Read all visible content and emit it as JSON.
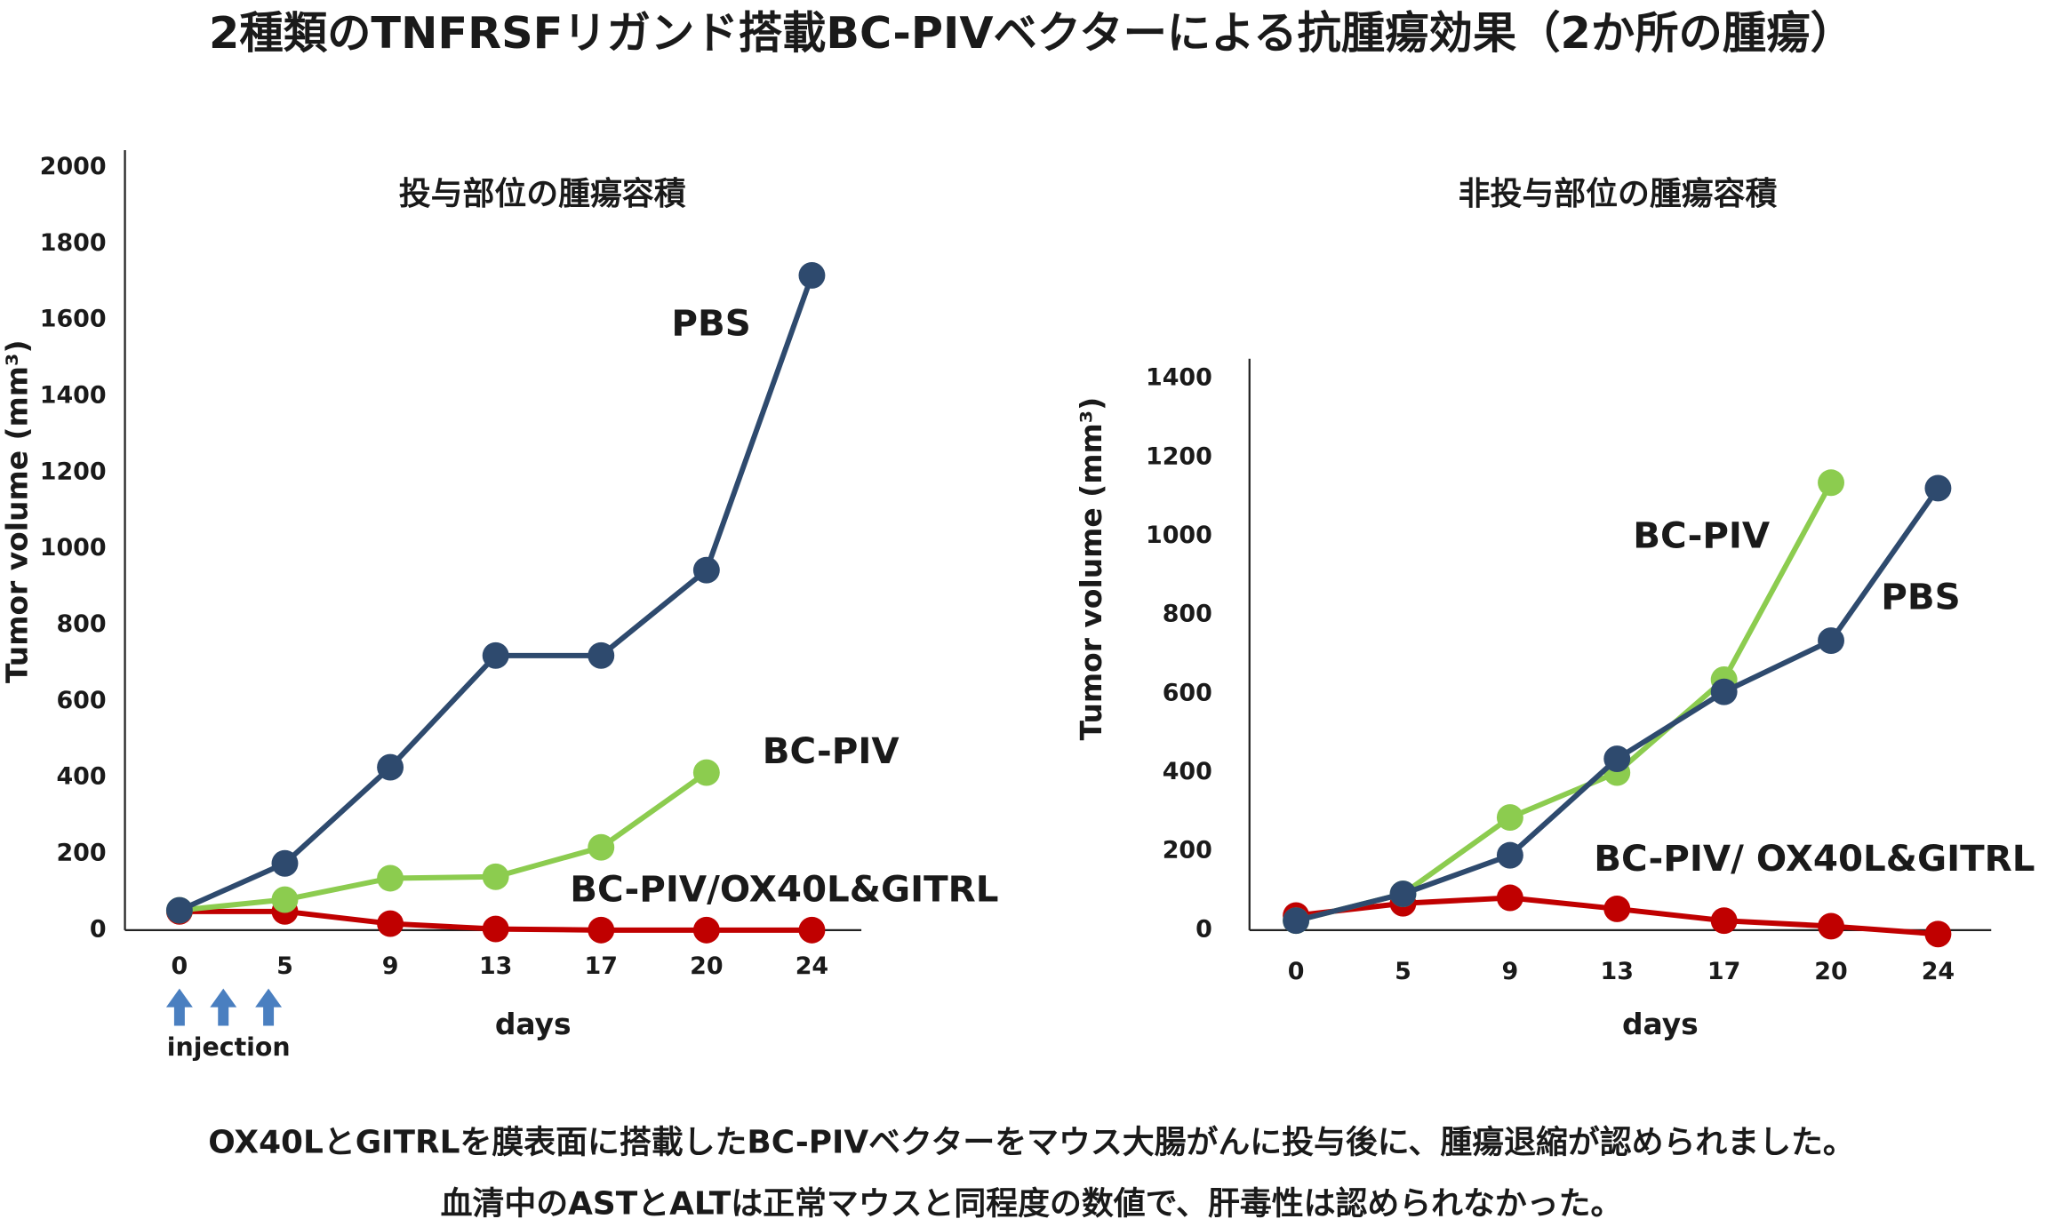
{
  "title": "2種類のTNFRSFリガンド搭載BC-PIVベクターによる抗腫瘍効果（2か所の腫瘍）",
  "caption": [
    "OX40LとGITRLを膜表面に搭載したBC-PIVベクターをマウス大腸がんに投与後に、腫瘍退縮が認められました。",
    "血清中のASTとALTは正常マウスと同程度の数値で、肝毒性は認められなかった。"
  ],
  "chart_data": [
    {
      "type": "line",
      "title": "投与部位の腫瘍容積",
      "x_label": "days",
      "y_label": "Tumor volume (mm³)",
      "annotation": "injection",
      "categories": [
        "0",
        "5",
        "9",
        "13",
        "17",
        "20",
        "24"
      ],
      "ylim": [
        0,
        2000
      ],
      "yticks": [
        0,
        200,
        400,
        600,
        800,
        1000,
        1200,
        1400,
        1600,
        1800,
        2000
      ],
      "series": [
        {
          "name": "PBS",
          "color": "#2e4a6e",
          "values": [
            52,
            175,
            427,
            720,
            720,
            944,
            1717
          ]
        },
        {
          "name": "BC-PIV",
          "color": "#8ccc4f",
          "values": [
            52,
            80,
            136,
            140,
            217,
            413,
            null
          ]
        },
        {
          "name": "BC-PIV/OX40L&GITRL",
          "color": "#c00000",
          "values": [
            49,
            49,
            17,
            3,
            0,
            0,
            0
          ]
        }
      ]
    },
    {
      "type": "line",
      "title": "非投与部位の腫瘍容積",
      "x_label": "days",
      "y_label": "Tumor volume (mm³)",
      "categories": [
        "0",
        "5",
        "9",
        "13",
        "17",
        "20",
        "24"
      ],
      "ylim": [
        0,
        1400
      ],
      "yticks": [
        0,
        200,
        400,
        600,
        800,
        1000,
        1200,
        1400
      ],
      "series": [
        {
          "name": "PBS",
          "color": "#2e4a6e",
          "values": [
            24,
            92,
            190,
            435,
            605,
            735,
            1122
          ]
        },
        {
          "name": "BC-PIV",
          "color": "#8ccc4f",
          "values": [
            24,
            92,
            286,
            400,
            636,
            1136,
            null
          ]
        },
        {
          "name": "BC-PIV/ OX40L&GITRL",
          "color": "#c00000",
          "values": [
            37,
            68,
            82,
            54,
            24,
            10,
            -10
          ]
        }
      ]
    }
  ]
}
